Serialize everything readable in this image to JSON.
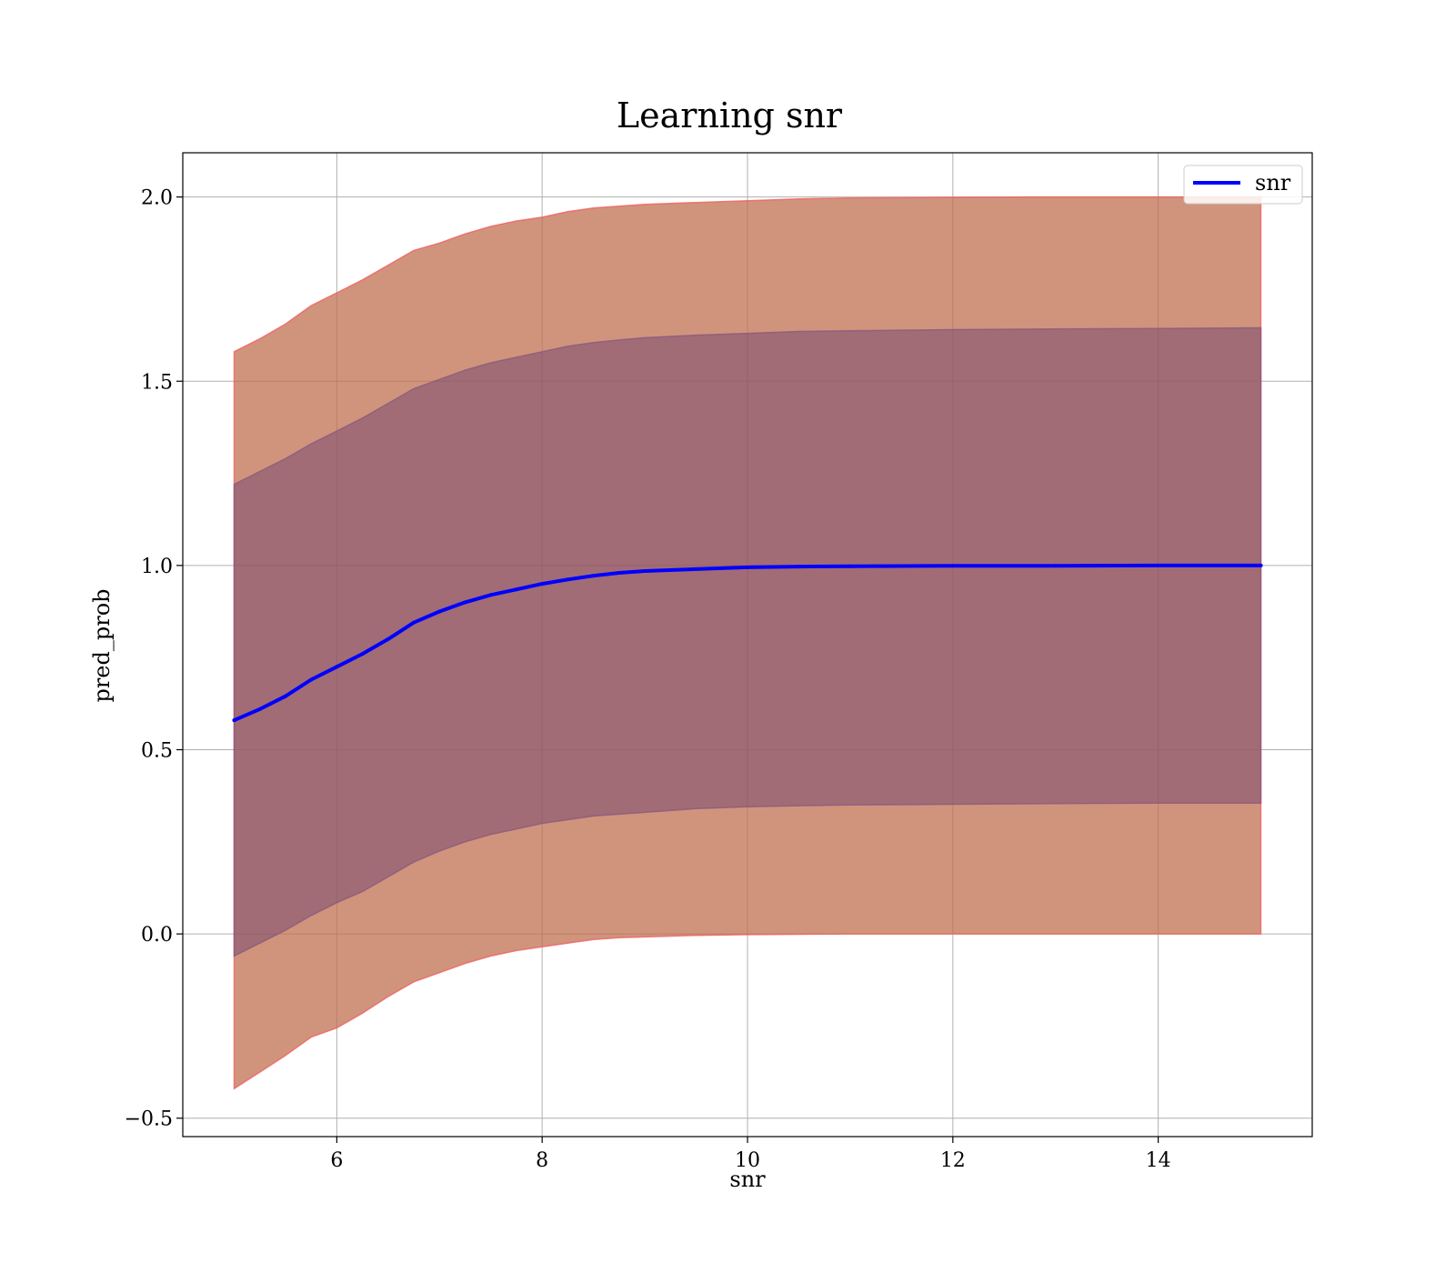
{
  "chart_data": {
    "type": "line",
    "title": "Learning snr",
    "xlabel": "snr",
    "ylabel": "pred_prob",
    "xlim": [
      4.5,
      15.5
    ],
    "ylim": [
      -0.55,
      2.12
    ],
    "grid": true,
    "legend": {
      "placement": "top-right",
      "entries": [
        "snr"
      ]
    },
    "xticks": [
      {
        "value": 6,
        "label": "6"
      },
      {
        "value": 8,
        "label": "8"
      },
      {
        "value": 10,
        "label": "10"
      },
      {
        "value": 12,
        "label": "12"
      },
      {
        "value": 14,
        "label": "14"
      }
    ],
    "yticks": [
      {
        "value": -0.5,
        "label": "−0.5"
      },
      {
        "value": 0.0,
        "label": "0.0"
      },
      {
        "value": 0.5,
        "label": "0.5"
      },
      {
        "value": 1.0,
        "label": "1.0"
      },
      {
        "value": 1.5,
        "label": "1.5"
      },
      {
        "value": 2.0,
        "label": "2.0"
      }
    ],
    "series": [
      {
        "name": "snr",
        "color": "#0000ff",
        "x": [
          5.0,
          5.25,
          5.5,
          5.75,
          6.0,
          6.25,
          6.5,
          6.75,
          7.0,
          7.25,
          7.5,
          7.75,
          8.0,
          8.25,
          8.5,
          8.75,
          9.0,
          9.5,
          10.0,
          10.5,
          11.0,
          12.0,
          13.0,
          14.0,
          15.0
        ],
        "y": [
          0.58,
          0.61,
          0.645,
          0.69,
          0.725,
          0.76,
          0.8,
          0.845,
          0.875,
          0.9,
          0.92,
          0.935,
          0.95,
          0.962,
          0.972,
          0.98,
          0.985,
          0.99,
          0.995,
          0.997,
          0.998,
          0.999,
          0.999,
          1.0,
          1.0
        ]
      }
    ],
    "bands": [
      {
        "color": "#c07050",
        "edge_color": "#f06060",
        "opacity": 0.75,
        "lower": [
          -0.42,
          -0.375,
          -0.33,
          -0.28,
          -0.255,
          -0.215,
          -0.17,
          -0.13,
          -0.105,
          -0.08,
          -0.06,
          -0.045,
          -0.035,
          -0.025,
          -0.015,
          -0.01,
          -0.008,
          -0.004,
          -0.002,
          -0.001,
          0.0,
          0.0,
          0.0,
          0.0,
          0.0
        ],
        "upper": [
          1.58,
          1.615,
          1.655,
          1.705,
          1.74,
          1.775,
          1.815,
          1.855,
          1.875,
          1.9,
          1.92,
          1.935,
          1.945,
          1.96,
          1.97,
          1.975,
          1.98,
          1.985,
          1.99,
          1.995,
          1.997,
          1.999,
          2.0,
          2.0,
          2.0
        ]
      },
      {
        "color": "#7a4a70",
        "edge_color": "#8a5a80",
        "opacity": 0.55,
        "lower": [
          -0.06,
          -0.025,
          0.01,
          0.05,
          0.085,
          0.115,
          0.155,
          0.195,
          0.225,
          0.25,
          0.27,
          0.285,
          0.3,
          0.31,
          0.32,
          0.325,
          0.33,
          0.34,
          0.345,
          0.348,
          0.35,
          0.352,
          0.354,
          0.355,
          0.355
        ],
        "upper": [
          1.22,
          1.255,
          1.29,
          1.33,
          1.365,
          1.4,
          1.44,
          1.48,
          1.505,
          1.53,
          1.55,
          1.565,
          1.58,
          1.595,
          1.605,
          1.612,
          1.618,
          1.625,
          1.63,
          1.635,
          1.637,
          1.64,
          1.642,
          1.643,
          1.645
        ]
      }
    ]
  }
}
